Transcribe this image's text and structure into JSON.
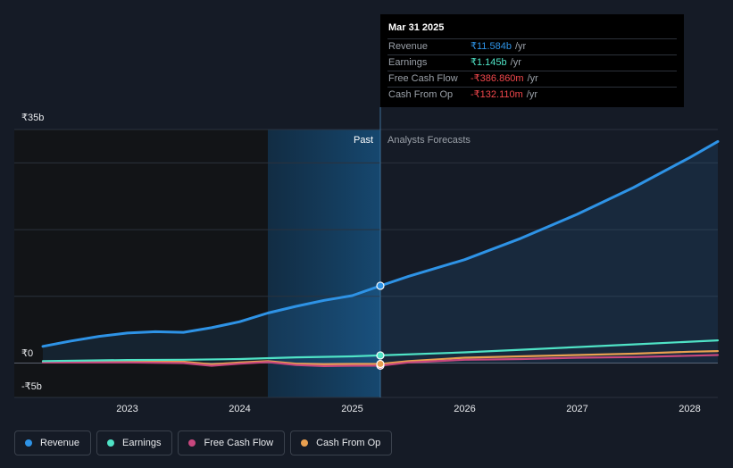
{
  "chart_data": {
    "type": "line",
    "y_axis": {
      "ticks": [
        {
          "value": 35,
          "label": "₹35b"
        },
        {
          "value": 0,
          "label": "₹0"
        },
        {
          "value": -5,
          "label": "-₹5b"
        }
      ],
      "ylim": [
        -5,
        35
      ]
    },
    "x_axis": {
      "ticks": [
        {
          "value": 2023,
          "label": "2023"
        },
        {
          "value": 2024,
          "label": "2024"
        },
        {
          "value": 2025,
          "label": "2025"
        },
        {
          "value": 2026,
          "label": "2026"
        },
        {
          "value": 2027,
          "label": "2027"
        },
        {
          "value": 2028,
          "label": "2028"
        }
      ],
      "xlim": [
        2022.25,
        2028.25
      ]
    },
    "past_label": "Past",
    "forecast_label": "Analysts Forecasts",
    "past_start": 2024.25,
    "divider_date": 2025.25,
    "series": [
      {
        "name": "Revenue",
        "color": "#2e93e6",
        "points": [
          [
            2022.25,
            2.5
          ],
          [
            2022.5,
            3.3
          ],
          [
            2022.75,
            4.0
          ],
          [
            2023.0,
            4.5
          ],
          [
            2023.25,
            4.7
          ],
          [
            2023.5,
            4.6
          ],
          [
            2023.75,
            5.3
          ],
          [
            2024.0,
            6.2
          ],
          [
            2024.25,
            7.5
          ],
          [
            2024.5,
            8.5
          ],
          [
            2024.75,
            9.4
          ],
          [
            2025.0,
            10.1
          ],
          [
            2025.25,
            11.584
          ],
          [
            2025.5,
            13.0
          ],
          [
            2026.0,
            15.5
          ],
          [
            2026.5,
            18.7
          ],
          [
            2027.0,
            22.3
          ],
          [
            2027.5,
            26.3
          ],
          [
            2028.0,
            30.8
          ],
          [
            2028.25,
            33.2
          ]
        ]
      },
      {
        "name": "Earnings",
        "color": "#4fe3c6",
        "points": [
          [
            2022.25,
            0.3
          ],
          [
            2023.0,
            0.45
          ],
          [
            2023.5,
            0.5
          ],
          [
            2024.0,
            0.6
          ],
          [
            2024.5,
            0.85
          ],
          [
            2025.0,
            1.0
          ],
          [
            2025.25,
            1.145
          ],
          [
            2026.0,
            1.6
          ],
          [
            2026.5,
            2.0
          ],
          [
            2027.0,
            2.4
          ],
          [
            2027.5,
            2.8
          ],
          [
            2028.0,
            3.2
          ],
          [
            2028.25,
            3.4
          ]
        ]
      },
      {
        "name": "Free Cash Flow",
        "color": "#c8477e",
        "points": [
          [
            2022.25,
            0.1
          ],
          [
            2023.0,
            0.1
          ],
          [
            2023.5,
            0.0
          ],
          [
            2023.75,
            -0.4
          ],
          [
            2024.0,
            -0.1
          ],
          [
            2024.25,
            0.15
          ],
          [
            2024.5,
            -0.3
          ],
          [
            2024.75,
            -0.45
          ],
          [
            2025.0,
            -0.4
          ],
          [
            2025.25,
            -0.387
          ],
          [
            2025.5,
            0.1
          ],
          [
            2026.0,
            0.5
          ],
          [
            2026.5,
            0.6
          ],
          [
            2027.0,
            0.8
          ],
          [
            2027.5,
            0.9
          ],
          [
            2028.0,
            1.1
          ],
          [
            2028.25,
            1.2
          ]
        ]
      },
      {
        "name": "Cash From Op",
        "color": "#e9a050",
        "points": [
          [
            2022.25,
            0.2
          ],
          [
            2023.0,
            0.3
          ],
          [
            2023.5,
            0.2
          ],
          [
            2023.75,
            -0.2
          ],
          [
            2024.0,
            0.1
          ],
          [
            2024.25,
            0.3
          ],
          [
            2024.5,
            -0.1
          ],
          [
            2024.75,
            -0.2
          ],
          [
            2025.0,
            -0.15
          ],
          [
            2025.25,
            -0.132
          ],
          [
            2025.5,
            0.3
          ],
          [
            2026.0,
            0.8
          ],
          [
            2026.5,
            1.0
          ],
          [
            2027.0,
            1.2
          ],
          [
            2027.5,
            1.4
          ],
          [
            2028.0,
            1.7
          ],
          [
            2028.25,
            1.8
          ]
        ]
      }
    ]
  },
  "tooltip": {
    "date": "Mar 31 2025",
    "rows": [
      {
        "name": "Revenue",
        "value": "₹11.584b",
        "unit": "/yr",
        "color": "#2e93e6"
      },
      {
        "name": "Earnings",
        "value": "₹1.145b",
        "unit": "/yr",
        "color": "#4fe3c6"
      },
      {
        "name": "Free Cash Flow",
        "value": "-₹386.860m",
        "unit": "/yr",
        "color": "#f2474c"
      },
      {
        "name": "Cash From Op",
        "value": "-₹132.110m",
        "unit": "/yr",
        "color": "#f2474c"
      }
    ]
  },
  "legend": [
    {
      "label": "Revenue",
      "color": "#2e93e6"
    },
    {
      "label": "Earnings",
      "color": "#4fe3c6"
    },
    {
      "label": "Free Cash Flow",
      "color": "#c8477e"
    },
    {
      "label": "Cash From Op",
      "color": "#e9a050"
    }
  ]
}
